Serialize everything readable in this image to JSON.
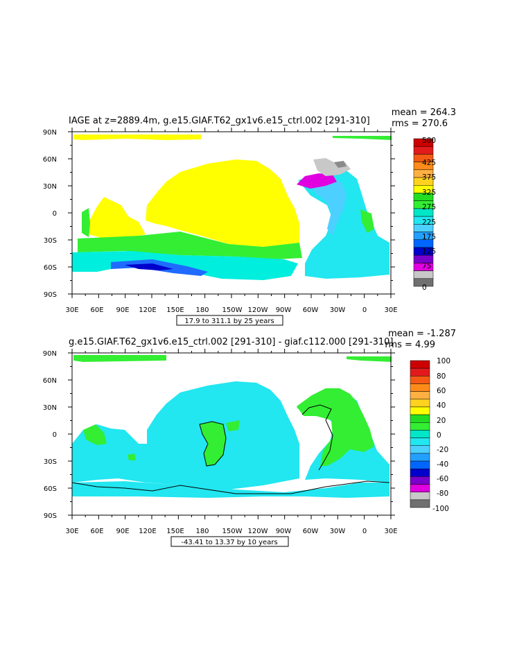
{
  "panels": [
    {
      "title": "IAGE at z=2889.4m, g.e15.GIAF.T62_gx1v6.e15_ctrl.002 [291-310]",
      "mean_text": "mean = 264.3",
      "rms_text": "rms = 270.6",
      "range_note": "17.9 to 311.1 by 25 years",
      "colorbar": {
        "labels": [
          "500",
          "425",
          "375",
          "325",
          "275",
          "225",
          "175",
          "125",
          "75",
          "0"
        ],
        "colors": [
          "#cc0000",
          "#e31a1c",
          "#f55a14",
          "#ff8c1a",
          "#ffb042",
          "#ffd21f",
          "#ffff00",
          "#22dd22",
          "#33ee33",
          "#00e6c8",
          "#22e6f0",
          "#4cd0ff",
          "#22a0ff",
          "#0066ff",
          "#0000cc",
          "#7a00cc",
          "#e000e0",
          "#c8c8c8",
          "#707070"
        ]
      },
      "map": {
        "regions": [
          {
            "name": "pacific-indian-yellow",
            "color": "#ffff00"
          },
          {
            "name": "southern-ocean-green",
            "color": "#33ee33"
          },
          {
            "name": "southern-ocean-cyan",
            "color": "#00eedd"
          },
          {
            "name": "southern-ocean-blue",
            "color": "#1f6bff"
          },
          {
            "name": "atlantic-cyan",
            "color": "#22e6f0"
          },
          {
            "name": "north-atlantic-magenta",
            "color": "#e000e0"
          },
          {
            "name": "nordic-seas-gray",
            "color": "#c8c8c8"
          }
        ]
      }
    },
    {
      "title": "g.e15.GIAF.T62_gx1v6.e15_ctrl.002 [291-310] - giaf.c112.000 [291-310]",
      "mean_text": "mean = -1.287",
      "rms_text": "rms = 4.99",
      "range_note": "-43.41 to 13.37 by 10 years",
      "colorbar": {
        "labels": [
          "100",
          "80",
          "60",
          "40",
          "20",
          "0",
          "-20",
          "-40",
          "-60",
          "-80",
          "-100"
        ],
        "colors": [
          "#cc0000",
          "#e31a1c",
          "#f55a14",
          "#ff8c1a",
          "#ffb042",
          "#ffd21f",
          "#ffff00",
          "#22dd22",
          "#33ee33",
          "#00e6c8",
          "#22e6f0",
          "#4cd0ff",
          "#22a0ff",
          "#0066ff",
          "#0000cc",
          "#7a00cc",
          "#e000e0",
          "#c8c8c8",
          "#707070"
        ]
      },
      "map": {
        "regions": [
          {
            "name": "global-cyan",
            "color": "#22e6f0"
          },
          {
            "name": "positive-green",
            "color": "#33ee33"
          }
        ]
      }
    }
  ],
  "axes": {
    "lat_labels": [
      "90N",
      "60N",
      "30N",
      "0",
      "30S",
      "60S",
      "90S"
    ],
    "lon_labels": [
      "30E",
      "60E",
      "90E",
      "120E",
      "150E",
      "180",
      "150W",
      "120W",
      "90W",
      "60W",
      "30W",
      "0",
      "30E"
    ]
  }
}
